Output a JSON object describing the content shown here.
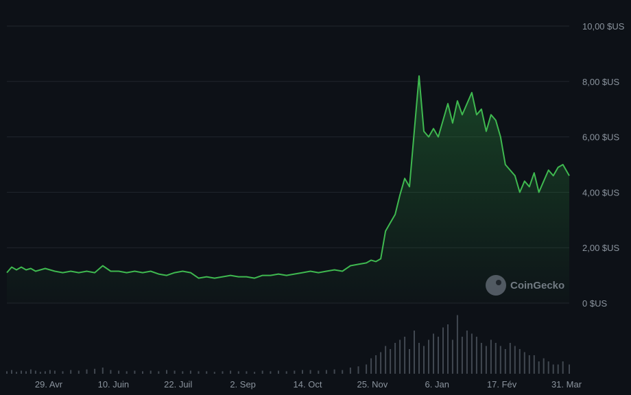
{
  "chart_data": {
    "type": "area",
    "y_axis": {
      "ticks": [
        "0 $US",
        "2,00 $US",
        "4,00 $US",
        "6,00 $US",
        "8,00 $US",
        "10,00 $US"
      ],
      "tick_values": [
        0,
        2,
        4,
        6,
        8,
        10
      ],
      "ylim": [
        0,
        10
      ],
      "position": "right"
    },
    "x_axis": {
      "ticks": [
        "29. Avr",
        "10. Juin",
        "22. Juil",
        "2. Sep",
        "14. Oct",
        "25. Nov",
        "6. Jan",
        "17. Fév",
        "31. Mar"
      ],
      "xlim": [
        0,
        352
      ]
    },
    "grid": true,
    "series": [
      {
        "color": "#3fb950",
        "x": [
          0,
          3,
          6,
          9,
          12,
          15,
          18,
          21,
          24,
          27,
          30,
          35,
          40,
          45,
          50,
          55,
          60,
          65,
          70,
          75,
          80,
          85,
          90,
          95,
          100,
          105,
          110,
          115,
          120,
          125,
          130,
          135,
          140,
          145,
          150,
          155,
          160,
          165,
          170,
          175,
          180,
          185,
          190,
          195,
          200,
          205,
          210,
          215,
          220,
          225,
          228,
          231,
          234,
          237,
          240,
          243,
          246,
          249,
          252,
          255,
          258,
          261,
          264,
          267,
          270,
          273,
          276,
          279,
          282,
          285,
          288,
          291,
          294,
          297,
          300,
          303,
          306,
          309,
          312,
          315,
          318,
          321,
          324,
          327,
          330,
          333,
          336,
          339,
          342,
          345,
          348,
          352
        ],
        "values": [
          1.1,
          1.3,
          1.2,
          1.3,
          1.2,
          1.25,
          1.15,
          1.2,
          1.25,
          1.2,
          1.15,
          1.1,
          1.15,
          1.1,
          1.15,
          1.1,
          1.35,
          1.15,
          1.15,
          1.1,
          1.15,
          1.1,
          1.15,
          1.05,
          1.0,
          1.1,
          1.15,
          1.1,
          0.9,
          0.95,
          0.9,
          0.95,
          1.0,
          0.95,
          0.95,
          0.9,
          1.0,
          1.0,
          1.05,
          1.0,
          1.05,
          1.1,
          1.15,
          1.1,
          1.15,
          1.2,
          1.15,
          1.35,
          1.4,
          1.45,
          1.55,
          1.5,
          1.6,
          2.6,
          2.9,
          3.2,
          3.9,
          4.5,
          4.2,
          6.2,
          8.2,
          6.2,
          6.0,
          6.3,
          6.0,
          6.6,
          7.2,
          6.5,
          7.3,
          6.8,
          7.2,
          7.6,
          6.8,
          7.0,
          6.2,
          6.8,
          6.6,
          6.0,
          5.0,
          4.8,
          4.6,
          4.0,
          4.4,
          4.2,
          4.7,
          4.0,
          4.4,
          4.8,
          4.6,
          4.9,
          5.0,
          4.6
        ],
        "volume": [
          0.04,
          0.06,
          0.03,
          0.05,
          0.04,
          0.07,
          0.05,
          0.03,
          0.04,
          0.06,
          0.05,
          0.04,
          0.06,
          0.05,
          0.07,
          0.08,
          0.1,
          0.06,
          0.05,
          0.04,
          0.05,
          0.04,
          0.05,
          0.04,
          0.06,
          0.05,
          0.04,
          0.05,
          0.04,
          0.04,
          0.03,
          0.04,
          0.05,
          0.04,
          0.04,
          0.03,
          0.05,
          0.04,
          0.05,
          0.04,
          0.05,
          0.06,
          0.06,
          0.05,
          0.06,
          0.07,
          0.06,
          0.1,
          0.12,
          0.15,
          0.25,
          0.3,
          0.35,
          0.45,
          0.4,
          0.5,
          0.55,
          0.6,
          0.4,
          0.7,
          0.5,
          0.45,
          0.55,
          0.65,
          0.6,
          0.75,
          0.8,
          0.55,
          0.95,
          0.6,
          0.7,
          0.65,
          0.6,
          0.5,
          0.45,
          0.55,
          0.5,
          0.45,
          0.4,
          0.5,
          0.45,
          0.4,
          0.35,
          0.3,
          0.3,
          0.2,
          0.25,
          0.2,
          0.15,
          0.15,
          0.2,
          0.15
        ]
      }
    ],
    "watermark": "CoinGecko"
  }
}
